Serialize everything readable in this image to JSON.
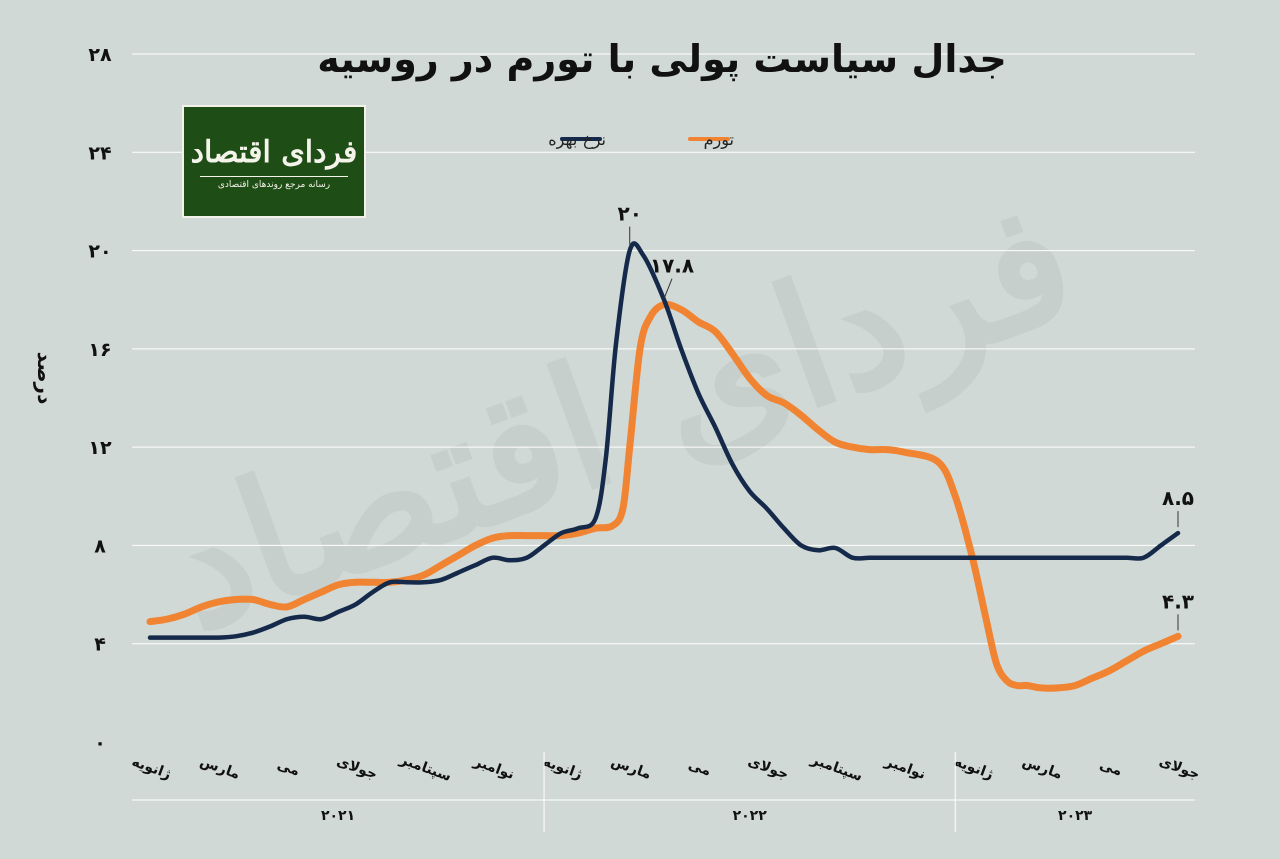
{
  "title": "جدال سیاست پولی با تورم در روسیه",
  "logo": {
    "main": "فردای اقتصاد",
    "sub": "رسانه مرجع روندهای اقتصادی"
  },
  "colors": {
    "rate": "#15294a",
    "inflation": "#f08432",
    "background": "#d1d9d6",
    "grid": "#ffffff"
  },
  "chart_data": {
    "type": "line",
    "ylabel": "درصد",
    "ylim": [
      0,
      28
    ],
    "yticks": [
      0,
      4,
      8,
      12,
      16,
      20,
      24,
      28
    ],
    "ytick_labels": [
      "۰",
      "۴",
      "۸",
      "۱۲",
      "۱۶",
      "۲۰",
      "۲۴",
      "۲۸"
    ],
    "grid": true,
    "legend_position": "top-center",
    "xlim": [
      0,
      30
    ],
    "x_ticks": [
      {
        "x": 0,
        "label": "ژانویه"
      },
      {
        "x": 2,
        "label": "مارس"
      },
      {
        "x": 4,
        "label": "می"
      },
      {
        "x": 6,
        "label": "جولای"
      },
      {
        "x": 8,
        "label": "سپتامبر"
      },
      {
        "x": 10,
        "label": "نوامبر"
      },
      {
        "x": 12,
        "label": "ژانویه"
      },
      {
        "x": 14,
        "label": "مارس"
      },
      {
        "x": 16,
        "label": "می"
      },
      {
        "x": 18,
        "label": "جولای"
      },
      {
        "x": 20,
        "label": "سپتامبر"
      },
      {
        "x": 22,
        "label": "نوامبر"
      },
      {
        "x": 24,
        "label": "ژانویه"
      },
      {
        "x": 26,
        "label": "مارس"
      },
      {
        "x": 28,
        "label": "می"
      },
      {
        "x": 30,
        "label": "جولای"
      }
    ],
    "years": [
      {
        "label": "۲۰۲۱",
        "from": 0,
        "to": 11
      },
      {
        "label": "۲۰۲۲",
        "from": 12,
        "to": 23
      },
      {
        "label": "۲۰۲۳",
        "from": 24,
        "to": 30
      }
    ],
    "series": [
      {
        "name": "نرخ بهره",
        "key": "rate",
        "x": [
          0,
          1,
          1.5,
          2,
          2.5,
          3,
          3.5,
          4,
          4.5,
          5,
          5.5,
          6,
          6.5,
          7,
          7.5,
          8,
          8.5,
          9,
          9.5,
          10,
          10.5,
          11,
          11.5,
          12,
          12.5,
          13,
          13.3,
          13.6,
          14,
          14.4,
          15,
          15.5,
          16,
          16.5,
          17,
          17.5,
          18,
          18.5,
          19,
          19.5,
          20,
          20.5,
          21,
          21.5,
          22,
          23,
          24,
          25,
          26,
          27,
          28,
          28.5,
          29,
          29.5,
          30
        ],
        "values": [
          4.25,
          4.25,
          4.25,
          4.25,
          4.3,
          4.45,
          4.7,
          5.0,
          5.1,
          5.0,
          5.3,
          5.6,
          6.1,
          6.5,
          6.5,
          6.5,
          6.6,
          6.9,
          7.2,
          7.5,
          7.4,
          7.5,
          8.0,
          8.5,
          8.7,
          9.1,
          11.5,
          16.2,
          20.0,
          19.8,
          18.0,
          16.0,
          14.2,
          12.8,
          11.3,
          10.2,
          9.5,
          8.7,
          8.0,
          7.8,
          7.9,
          7.5,
          7.5,
          7.5,
          7.5,
          7.5,
          7.5,
          7.5,
          7.5,
          7.5,
          7.5,
          7.5,
          7.5,
          8.0,
          8.5
        ]
      },
      {
        "name": "تورم",
        "key": "inflation",
        "x": [
          0,
          0.5,
          1,
          1.5,
          2,
          2.5,
          3,
          3.5,
          4,
          4.5,
          5,
          5.5,
          6,
          6.5,
          7,
          7.5,
          8,
          8.5,
          9,
          9.5,
          10,
          10.5,
          11,
          11.5,
          12,
          12.5,
          13,
          13.5,
          13.8,
          14,
          14.3,
          14.6,
          15,
          15.5,
          16,
          16.5,
          17,
          17.5,
          18,
          18.5,
          19,
          19.5,
          20,
          20.5,
          21,
          21.5,
          22,
          23,
          23.5,
          24,
          24.4,
          24.7,
          25,
          25.3,
          25.6,
          26,
          26.5,
          27,
          27.5,
          28,
          28.5,
          29,
          29.5,
          30
        ],
        "values": [
          4.9,
          5.0,
          5.2,
          5.5,
          5.7,
          5.8,
          5.8,
          5.6,
          5.5,
          5.8,
          6.1,
          6.4,
          6.5,
          6.5,
          6.5,
          6.6,
          6.8,
          7.2,
          7.6,
          8.0,
          8.3,
          8.4,
          8.4,
          8.4,
          8.4,
          8.5,
          8.7,
          8.8,
          9.5,
          12.0,
          16.0,
          17.3,
          17.8,
          17.6,
          17.1,
          16.7,
          15.8,
          14.8,
          14.1,
          13.8,
          13.3,
          12.7,
          12.2,
          12.0,
          11.9,
          11.9,
          11.8,
          11.4,
          10.0,
          7.5,
          5.0,
          3.2,
          2.5,
          2.3,
          2.3,
          2.2,
          2.2,
          2.3,
          2.6,
          2.9,
          3.3,
          3.7,
          4.0,
          4.3
        ]
      }
    ],
    "annotations": [
      {
        "series": "rate",
        "x": 14,
        "y": 20.0,
        "text": "۲۰"
      },
      {
        "series": "inflation",
        "x": 15,
        "y": 17.8,
        "text": "۱۷.۸"
      },
      {
        "series": "rate",
        "x": 30,
        "y": 8.5,
        "text": "۸.۵"
      },
      {
        "series": "inflation",
        "x": 30,
        "y": 4.3,
        "text": "۴.۳"
      }
    ]
  }
}
